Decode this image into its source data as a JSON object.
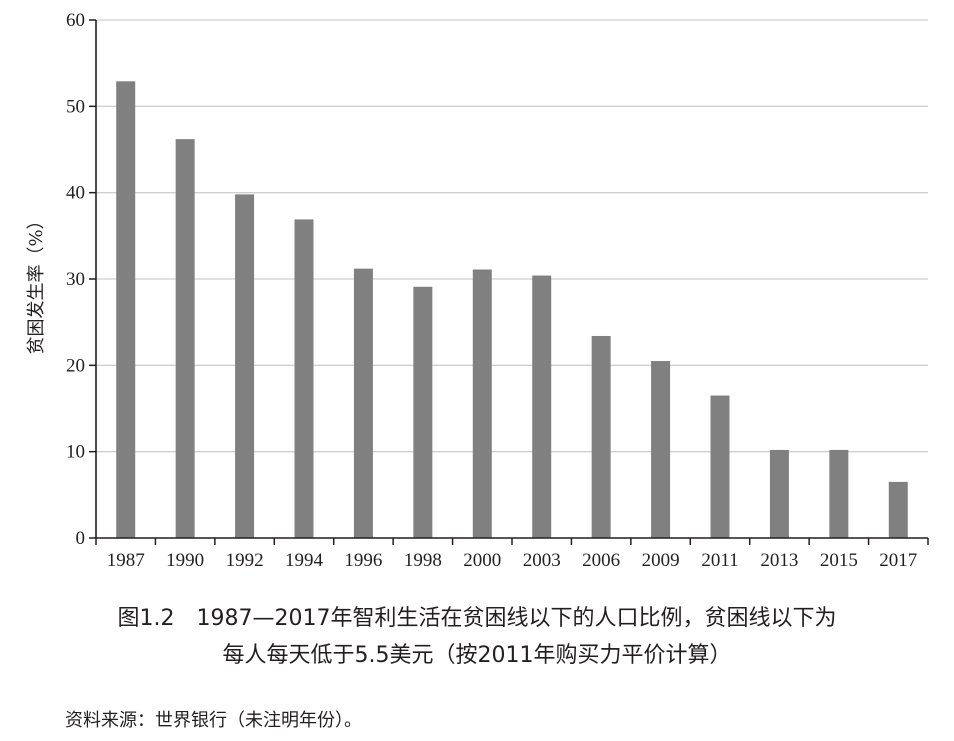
{
  "chart_data": {
    "type": "bar",
    "categories": [
      "1987",
      "1990",
      "1992",
      "1994",
      "1996",
      "1998",
      "2000",
      "2003",
      "2006",
      "2009",
      "2011",
      "2013",
      "2015",
      "2017"
    ],
    "values": [
      52.9,
      46.2,
      39.8,
      36.9,
      31.2,
      29.1,
      31.1,
      30.4,
      23.4,
      20.5,
      16.5,
      10.2,
      10.2,
      6.5
    ],
    "ylabel": "贫困发生率（%）",
    "xlabel": "",
    "ylim": [
      0,
      60
    ],
    "yticks": [
      0,
      10,
      20,
      30,
      40,
      50,
      60
    ],
    "grid": true,
    "bar_color": "#808080",
    "grid_color": "#cfcfcf"
  },
  "caption": {
    "line1": "图1.2　1987—2017年智利生活在贫困线以下的人口比例，贫困线以下为",
    "line2": "每人每天低于5.5美元（按2011年购买力平价计算）"
  },
  "source": "资料来源：世界银行（未注明年份）。"
}
